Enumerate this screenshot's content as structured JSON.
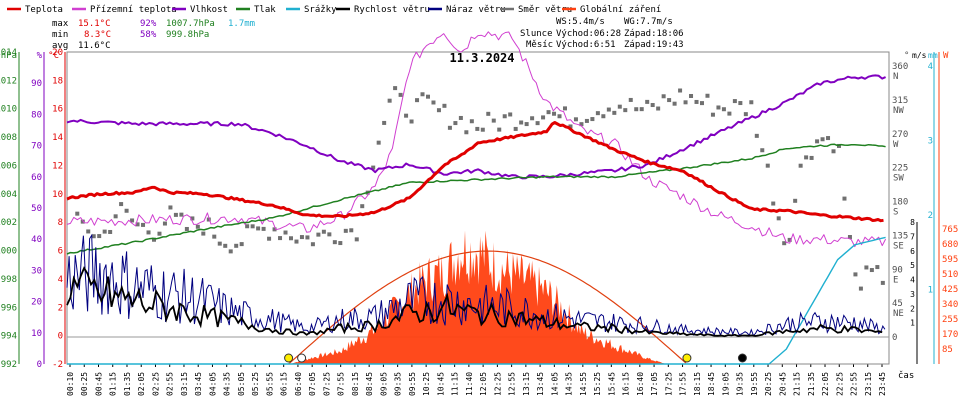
{
  "legend": [
    {
      "label": "Teplota",
      "color": "#e00000"
    },
    {
      "label": "Přízemní teplota",
      "color": "#d040d0"
    },
    {
      "label": "Vlhkost",
      "color": "#8000c0"
    },
    {
      "label": "Tlak",
      "color": "#208020"
    },
    {
      "label": "Srážky",
      "color": "#20b0d0"
    },
    {
      "label": "Rychlost větru",
      "color": "#000000"
    },
    {
      "label": "Náraz větru",
      "color": "#000080"
    },
    {
      "label": "Směr větru",
      "color": "#707070"
    },
    {
      "label": "Globální záření",
      "color": "#ff4010"
    }
  ],
  "stats": {
    "max": {
      "label": "max",
      "temp": "15.1°C",
      "hum": "92%",
      "press": "1007.7hPa",
      "rain": "1.7mm"
    },
    "min": {
      "label": "min",
      "temp": "8.3°C",
      "hum": "58%",
      "press": "999.8hPa"
    },
    "avg": {
      "label": "avg",
      "temp": "11.6°C"
    }
  },
  "info": {
    "ws": "WS:5.4m/s",
    "wg": "WG:7.7m/s",
    "sun_label": "Slunce",
    "sun_rise": "Východ:06:28",
    "sun_set": "Západ:18:06",
    "moon_label": "Měsíc",
    "moon_rise": "Východ:6:51",
    "moon_set": "Západ:19:43"
  },
  "chart_data": {
    "type": "line",
    "title": "11.3.2024",
    "xlabel": "čas",
    "x_ticks": [
      "00:10",
      "00:25",
      "00:45",
      "01:15",
      "01:35",
      "02:05",
      "02:25",
      "02:55",
      "03:15",
      "03:45",
      "04:05",
      "04:35",
      "05:05",
      "05:25",
      "05:55",
      "06:15",
      "06:40",
      "07:05",
      "07:25",
      "07:55",
      "08:15",
      "08:45",
      "09:05",
      "09:35",
      "09:55",
      "10:25",
      "10:45",
      "11:15",
      "11:40",
      "12:05",
      "12:25",
      "12:55",
      "13:15",
      "13:45",
      "14:05",
      "14:35",
      "14:55",
      "15:25",
      "15:45",
      "16:15",
      "16:40",
      "17:05",
      "17:25",
      "17:55",
      "18:15",
      "18:45",
      "19:05",
      "19:35",
      "19:55",
      "20:25",
      "20:45",
      "21:15",
      "21:35",
      "22:05",
      "22:25",
      "22:55",
      "23:15",
      "23:45"
    ],
    "axes": {
      "hpa": {
        "unit": "hPa",
        "color": "#208020",
        "min": 992,
        "max": 1014,
        "ticks": [
          "992",
          "994",
          "996",
          "998",
          "1000",
          "1002",
          "1004",
          "1006",
          "1008",
          "1010",
          "1012",
          "1014"
        ]
      },
      "pct": {
        "unit": "%",
        "color": "#8000c0",
        "min": 0,
        "max": 100,
        "ticks": [
          "0",
          "10",
          "20",
          "30",
          "40",
          "50",
          "60",
          "70",
          "80",
          "90",
          "100"
        ]
      },
      "temp": {
        "unit": "°C",
        "color": "#e00000",
        "min": -2,
        "max": 20,
        "ticks": [
          "-2",
          "0",
          "2",
          "4",
          "6",
          "8",
          "10",
          "12",
          "14",
          "16",
          "18",
          "20"
        ]
      },
      "dir": {
        "unit": "°",
        "color": "#505050",
        "ticks": [
          {
            "v": "360",
            "c": "N"
          },
          {
            "v": "315",
            "c": "NW"
          },
          {
            "v": "270",
            "c": "W"
          },
          {
            "v": "225",
            "c": "SW"
          },
          {
            "v": "180",
            "c": "S"
          },
          {
            "v": "135",
            "c": "SE"
          },
          {
            "v": "90",
            "c": "E"
          },
          {
            "v": "45",
            "c": "NE"
          },
          {
            "v": "0",
            "c": ""
          }
        ]
      },
      "ms": {
        "unit": "m/s",
        "color": "#000000",
        "ticks": [
          "8",
          "7",
          "6",
          "5",
          "4",
          "3",
          "2",
          "1"
        ]
      },
      "mm": {
        "unit": "mm",
        "color": "#20b0d0",
        "ticks": [
          "4",
          "3",
          "2",
          "1"
        ]
      },
      "wm2": {
        "unit": "W",
        "color": "#ff4010",
        "ticks": [
          "765",
          "680",
          "595",
          "510",
          "425",
          "340",
          "255",
          "170",
          "85"
        ]
      }
    },
    "series": [
      {
        "name": "Teplota",
        "color": "#e00000",
        "unit": "°C",
        "points": [
          [
            0,
            9.7
          ],
          [
            1,
            10.0
          ],
          [
            2,
            10.1
          ],
          [
            2.5,
            10.5
          ],
          [
            3,
            10.1
          ],
          [
            4,
            10.0
          ],
          [
            5,
            9.6
          ],
          [
            6,
            9.2
          ],
          [
            7,
            8.5
          ],
          [
            8,
            8.4
          ],
          [
            9,
            8.7
          ],
          [
            10,
            9.7
          ],
          [
            11,
            12.0
          ],
          [
            11.5,
            12.7
          ],
          [
            12,
            13.6
          ],
          [
            13,
            14.0
          ],
          [
            14,
            14.4
          ],
          [
            14.2,
            15.1
          ],
          [
            15,
            14.2
          ],
          [
            16,
            13.1
          ],
          [
            17,
            12.2
          ],
          [
            18,
            11.6
          ],
          [
            19,
            10.2
          ],
          [
            20,
            8.9
          ],
          [
            21,
            8.8
          ],
          [
            22,
            8.5
          ],
          [
            23,
            8.3
          ],
          [
            23.9,
            8.1
          ]
        ]
      },
      {
        "name": "Přízemní teplota",
        "color": "#d040d0",
        "unit": "°C",
        "points": [
          [
            0,
            8.0
          ],
          [
            3,
            8.2
          ],
          [
            5,
            8.3
          ],
          [
            7,
            7.5
          ],
          [
            8,
            8.4
          ],
          [
            9,
            10.5
          ],
          [
            9.5,
            13.0
          ],
          [
            10,
            19.0
          ],
          [
            10.5,
            20.5
          ],
          [
            11,
            21.5
          ],
          [
            11.5,
            20.0
          ],
          [
            12,
            21.5
          ],
          [
            13,
            21.0
          ],
          [
            14,
            16.5
          ],
          [
            15,
            14.5
          ],
          [
            16,
            13.5
          ],
          [
            17,
            11.0
          ],
          [
            18,
            9.8
          ],
          [
            19,
            8.5
          ],
          [
            20,
            7.7
          ],
          [
            21,
            6.8
          ],
          [
            22,
            6.8
          ],
          [
            23,
            6.6
          ],
          [
            23.9,
            6.6
          ]
        ]
      },
      {
        "name": "Vlhkost",
        "color": "#8000c0",
        "unit": "%",
        "points": [
          [
            0,
            78
          ],
          [
            2,
            77
          ],
          [
            4,
            77
          ],
          [
            5,
            77
          ],
          [
            6,
            74
          ],
          [
            7,
            70
          ],
          [
            8,
            65
          ],
          [
            9,
            62
          ],
          [
            10,
            64
          ],
          [
            11,
            61
          ],
          [
            12,
            62
          ],
          [
            13,
            60
          ],
          [
            14,
            60
          ],
          [
            15,
            61
          ],
          [
            16,
            62
          ],
          [
            17,
            64
          ],
          [
            18,
            69
          ],
          [
            19,
            74
          ],
          [
            20,
            79
          ],
          [
            21,
            84
          ],
          [
            22,
            90
          ],
          [
            23,
            92
          ],
          [
            23.9,
            92
          ]
        ]
      },
      {
        "name": "Tlak",
        "color": "#208020",
        "unit": "hPa",
        "points": [
          [
            0,
            999.8
          ],
          [
            2,
            1000.6
          ],
          [
            4,
            1001.5
          ],
          [
            6,
            1002.3
          ],
          [
            8,
            1003.6
          ],
          [
            10,
            1004.8
          ],
          [
            12,
            1005.0
          ],
          [
            14,
            1005.2
          ],
          [
            16,
            1005.2
          ],
          [
            18,
            1005.8
          ],
          [
            20,
            1006.5
          ],
          [
            21,
            1007.2
          ],
          [
            22,
            1007.4
          ],
          [
            23,
            1007.5
          ],
          [
            23.9,
            1007.3
          ]
        ]
      },
      {
        "name": "Rychlost větru",
        "color": "#000000",
        "unit": "m/s",
        "points": [
          [
            0,
            3.5
          ],
          [
            1,
            3.0
          ],
          [
            2,
            2.5
          ],
          [
            3,
            2.0
          ],
          [
            4,
            1.5
          ],
          [
            5,
            1.0
          ],
          [
            6,
            0.5
          ],
          [
            7,
            0.2
          ],
          [
            8,
            0.6
          ],
          [
            9,
            0.8
          ],
          [
            10,
            1.6
          ],
          [
            11,
            2.0
          ],
          [
            12,
            1.6
          ],
          [
            13,
            1.4
          ],
          [
            14,
            1.0
          ],
          [
            15,
            0.7
          ],
          [
            16,
            0.6
          ],
          [
            17,
            0.3
          ],
          [
            18,
            0.2
          ],
          [
            19,
            0.1
          ],
          [
            20,
            0.1
          ],
          [
            21,
            0.4
          ],
          [
            22,
            0.6
          ],
          [
            23,
            0.5
          ],
          [
            23.9,
            0.3
          ]
        ]
      },
      {
        "name": "Náraz větru",
        "color": "#000080",
        "unit": "m/s",
        "points": [
          [
            0,
            4.0
          ],
          [
            1,
            4.5
          ],
          [
            2,
            3.5
          ],
          [
            3,
            3.0
          ],
          [
            4,
            2.5
          ],
          [
            5,
            1.6
          ],
          [
            6,
            1.2
          ],
          [
            7,
            0.6
          ],
          [
            8,
            1.2
          ],
          [
            9,
            1.4
          ],
          [
            10,
            2.5
          ],
          [
            11,
            2.6
          ],
          [
            12,
            2.2
          ],
          [
            13,
            2.0
          ],
          [
            14,
            1.5
          ],
          [
            15,
            1.2
          ],
          [
            16,
            1.0
          ],
          [
            17,
            0.8
          ],
          [
            18,
            0.5
          ],
          [
            19,
            0.4
          ],
          [
            20,
            0.3
          ],
          [
            21,
            0.9
          ],
          [
            22,
            1.1
          ],
          [
            23,
            1.0
          ],
          [
            23.9,
            0.5
          ]
        ]
      },
      {
        "name": "Srážky",
        "color": "#20b0d0",
        "unit": "mm",
        "points": [
          [
            0,
            0
          ],
          [
            20.5,
            0
          ],
          [
            21,
            0.2
          ],
          [
            21.5,
            0.6
          ],
          [
            22,
            1.0
          ],
          [
            22.5,
            1.4
          ],
          [
            23,
            1.6
          ],
          [
            23.9,
            1.7
          ]
        ]
      },
      {
        "name": "Globální záření",
        "color": "#ff4010",
        "unit": "W",
        "points": [
          [
            6.5,
            0
          ],
          [
            7,
            30
          ],
          [
            8,
            80
          ],
          [
            9,
            210
          ],
          [
            10,
            430
          ],
          [
            10.5,
            520
          ],
          [
            11,
            560
          ],
          [
            11.5,
            700
          ],
          [
            12,
            690
          ],
          [
            12.5,
            600
          ],
          [
            13,
            550
          ],
          [
            13.5,
            500
          ],
          [
            14,
            440
          ],
          [
            14.5,
            330
          ],
          [
            15,
            200
          ],
          [
            16,
            110
          ],
          [
            17,
            30
          ],
          [
            17.5,
            0
          ]
        ]
      },
      {
        "name": "Směr větru",
        "color": "#707070",
        "unit": "°",
        "points": [
          [
            0.5,
            150
          ],
          [
            1,
            130
          ],
          [
            1.5,
            170
          ],
          [
            2,
            150
          ],
          [
            2.5,
            140
          ],
          [
            3,
            160
          ],
          [
            3.5,
            145
          ],
          [
            4,
            150
          ],
          [
            4.5,
            130
          ],
          [
            5,
            125
          ],
          [
            5.5,
            140
          ],
          [
            6,
            145
          ],
          [
            7,
            130
          ],
          [
            7.5,
            135
          ],
          [
            8,
            140
          ],
          [
            8.5,
            145
          ],
          [
            9,
            250
          ],
          [
            9.5,
            320
          ],
          [
            10,
            300
          ],
          [
            10.5,
            310
          ],
          [
            11,
            295
          ],
          [
            12,
            280
          ],
          [
            13,
            290
          ],
          [
            14,
            300
          ],
          [
            14.5,
            290
          ],
          [
            15,
            295
          ],
          [
            16,
            310
          ],
          [
            17,
            300
          ],
          [
            17.5,
            315
          ],
          [
            18,
            320
          ],
          [
            19,
            305
          ],
          [
            20,
            305
          ],
          [
            21,
            120
          ],
          [
            21.5,
            240
          ],
          [
            22,
            265
          ],
          [
            22.5,
            260
          ],
          [
            23,
            75
          ],
          [
            23.5,
            80
          ]
        ]
      }
    ],
    "sun_curve": {
      "name": "Teoretické záření",
      "color": "#e04010",
      "peak": 640,
      "rise": 6.47,
      "set": 18.1
    },
    "markers": [
      {
        "hour": 6.47,
        "type": "sunrise"
      },
      {
        "hour": 6.85,
        "type": "moonrise"
      },
      {
        "hour": 18.1,
        "type": "sunset"
      },
      {
        "hour": 19.72,
        "type": "moonset"
      }
    ]
  }
}
